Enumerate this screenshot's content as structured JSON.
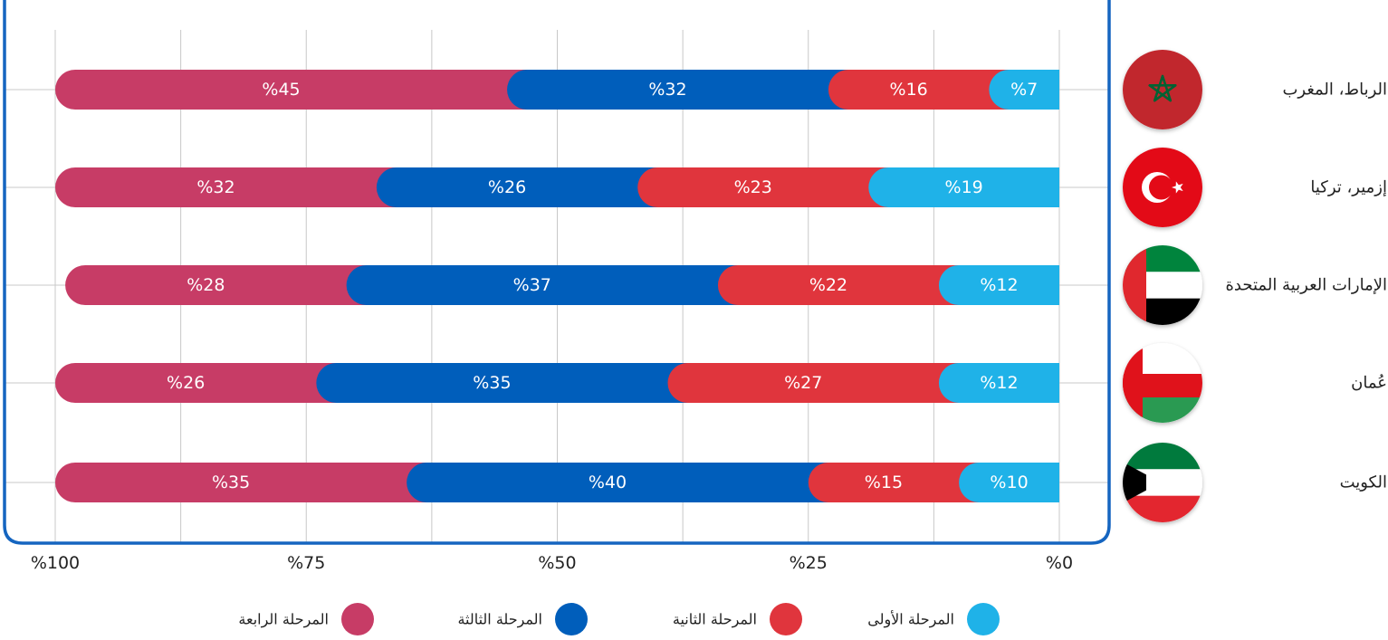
{
  "chart_data": {
    "type": "bar",
    "orientation": "horizontal-stacked",
    "direction": "rtl",
    "categories": [
      "الرباط، المغرب",
      "إزمير، تركيا",
      "الإمارات العربية المتحدة",
      "عُمان",
      "الكويت"
    ],
    "flags": [
      "morocco-flag",
      "turkey-flag",
      "uae-flag",
      "oman-flag",
      "kuwait-flag"
    ],
    "series": [
      {
        "name": "المرحلة الأولى",
        "color": "#1fb2e8",
        "values": [
          7,
          19,
          12,
          12,
          10
        ]
      },
      {
        "name": "المرحلة الثانية",
        "color": "#e0353d",
        "values": [
          16,
          23,
          22,
          27,
          15
        ]
      },
      {
        "name": "المرحلة الثالثة",
        "color": "#005ebb",
        "values": [
          32,
          26,
          37,
          35,
          40
        ]
      },
      {
        "name": "المرحلة الرابعة",
        "color": "#c73c66",
        "values": [
          45,
          32,
          28,
          26,
          35
        ]
      }
    ],
    "value_labels": [
      [
        "%7",
        "%16",
        "%32",
        "%45"
      ],
      [
        "%19",
        "%23",
        "%26",
        "%32"
      ],
      [
        "%12",
        "%22",
        "%37",
        "%28"
      ],
      [
        "%12",
        "%27",
        "%35",
        "%26"
      ],
      [
        "%10",
        "%15",
        "%40",
        "%35"
      ]
    ],
    "axis": {
      "range": [
        0,
        100
      ],
      "ticks": [
        0,
        25,
        50,
        75,
        100
      ],
      "tick_labels": [
        "%0",
        "%25",
        "%50",
        "%75",
        "%100"
      ]
    },
    "legend_position": "bottom",
    "grid": true,
    "frame_color": "#1565c0"
  }
}
